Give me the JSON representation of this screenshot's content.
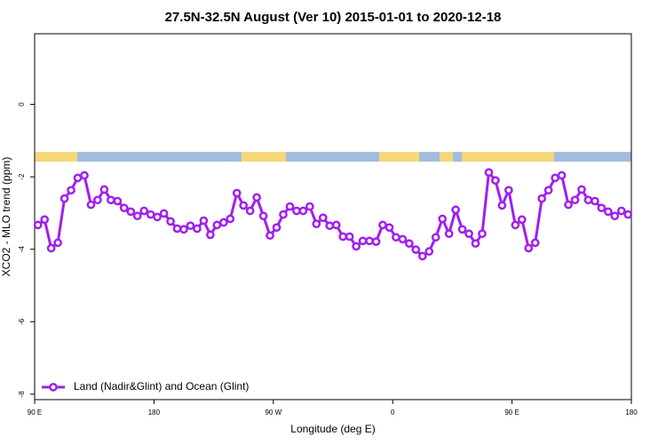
{
  "chart_data": {
    "type": "line",
    "title": "27.5N-32.5N August (Ver 10)   2015-01-01 to 2020-12-18",
    "x_label": "Longitude (deg E)",
    "y_label": "XCO2 - MLO trend (ppm)",
    "xlim": [
      90,
      540
    ],
    "ylim": [
      -8.15,
      1.95
    ],
    "xticks": [
      {
        "value": 90,
        "label": "90 E"
      },
      180,
      {
        "value": 270,
        "label": "90 W"
      },
      {
        "value": 360,
        "label": "0"
      },
      {
        "value": 450,
        "label": "90 E"
      },
      {
        "value": 540,
        "label": "180"
      }
    ],
    "yticks": [
      0,
      -2,
      -4,
      -6,
      -8
    ],
    "grid": false,
    "legend": "bottom-left",
    "x": [
      92.5,
      97.5,
      102.5,
      107.5,
      112.5,
      117.5,
      122.5,
      127.5,
      132.5,
      137.5,
      142.5,
      147.5,
      152.5,
      157.5,
      162.5,
      167.5,
      172.5,
      177.5,
      182.5,
      187.5,
      192.5,
      197.5,
      202.5,
      207.5,
      212.5,
      217.5,
      222.5,
      227.5,
      232.5,
      237.5,
      242.5,
      247.5,
      252.5,
      257.5,
      262.5,
      267.5,
      272.5,
      277.5,
      282.5,
      287.5,
      292.5,
      297.5,
      302.5,
      307.5,
      312.5,
      317.5,
      322.5,
      327.5,
      332.5,
      337.5,
      342.5,
      347.5,
      352.5,
      357.5,
      362.5,
      367.5,
      372.5,
      377.5,
      382.5,
      387.5,
      392.5,
      397.5,
      402.5,
      407.5,
      412.5,
      417.5,
      422.5,
      427.5,
      432.5,
      437.5,
      442.5,
      447.5,
      452.5,
      457.5,
      462.5,
      467.5,
      472.5,
      477.5,
      482.5,
      487.5,
      492.5,
      497.5,
      502.5,
      507.5,
      512.5,
      517.5,
      522.5,
      527.5,
      532.5,
      537.5
    ],
    "series": [
      {
        "name": "Land (Nadir&Glint) and Ocean (Glint)",
        "color": "#a020f0",
        "values": [
          -3.33,
          -3.18,
          -3.97,
          -3.82,
          -2.6,
          -2.37,
          -2.03,
          -1.96,
          -2.77,
          -2.64,
          -2.35,
          -2.64,
          -2.67,
          -2.86,
          -2.96,
          -3.08,
          -2.94,
          -3.04,
          -3.11,
          -3.01,
          -3.23,
          -3.43,
          -3.45,
          -3.35,
          -3.43,
          -3.21,
          -3.6,
          -3.33,
          -3.26,
          -3.16,
          -2.45,
          -2.79,
          -2.94,
          -2.57,
          -3.08,
          -3.62,
          -3.4,
          -3.04,
          -2.82,
          -2.94,
          -2.94,
          -2.82,
          -3.3,
          -3.13,
          -3.35,
          -3.33,
          -3.65,
          -3.65,
          -3.92,
          -3.77,
          -3.77,
          -3.79,
          -3.33,
          -3.4,
          -3.67,
          -3.72,
          -3.84,
          -4.01,
          -4.19,
          -4.06,
          -3.67,
          -3.16,
          -3.57,
          -2.91,
          -3.45,
          -3.57,
          -3.84,
          -3.57,
          -1.88,
          -2.1,
          -2.79,
          -2.37,
          -3.33,
          -3.18,
          -3.97,
          -3.82,
          -2.6,
          -2.37,
          -2.03,
          -1.96,
          -2.77,
          -2.64,
          -2.35,
          -2.64,
          -2.67,
          -2.86,
          -2.96,
          -3.08,
          -2.94,
          -3.04
        ]
      }
    ]
  }
}
